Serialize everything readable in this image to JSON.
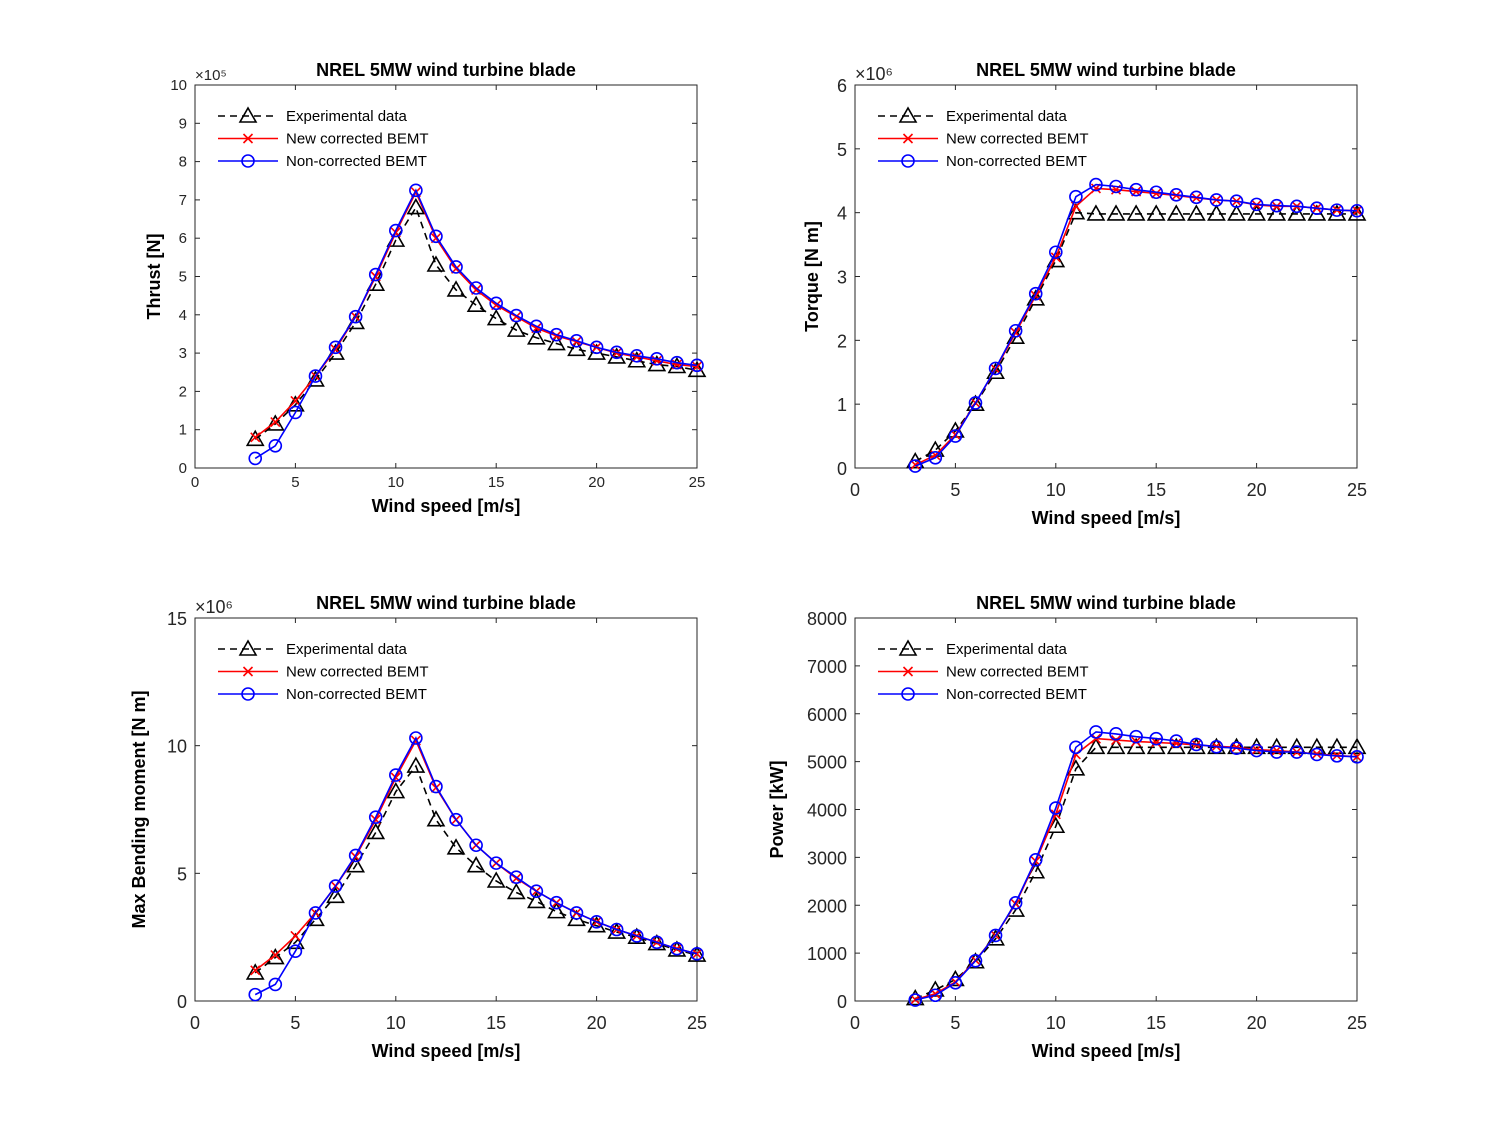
{
  "chart_data": [
    {
      "type": "line",
      "title": "NREL 5MW wind turbine blade",
      "xlabel": "Wind speed [m/s]",
      "ylabel": "Thrust [N]",
      "y_multiplier": "×10⁵",
      "xlim": [
        0,
        25
      ],
      "ylim": [
        0,
        10
      ],
      "xticks": [
        "0",
        "5",
        "10",
        "15",
        "20",
        "25"
      ],
      "yticks": [
        "0",
        "1",
        "2",
        "3",
        "4",
        "5",
        "6",
        "7",
        "8",
        "9",
        "10"
      ],
      "legend": "top-left",
      "x": [
        3,
        4,
        5,
        6,
        7,
        8,
        9,
        10,
        11,
        12,
        13,
        14,
        15,
        16,
        17,
        18,
        19,
        20,
        21,
        22,
        23,
        24,
        25
      ],
      "series": [
        {
          "name": "Experimental data",
          "color": "#000000",
          "marker": "triangle",
          "dash": "dashed",
          "values": [
            0.75,
            1.15,
            1.65,
            2.3,
            3.0,
            3.8,
            4.8,
            5.95,
            6.8,
            5.3,
            4.65,
            4.25,
            3.9,
            3.6,
            3.4,
            3.25,
            3.1,
            3.0,
            2.9,
            2.8,
            2.7,
            2.65,
            2.55
          ]
        },
        {
          "name": "New corrected BEMT",
          "color": "#ff0000",
          "marker": "x",
          "dash": "solid",
          "values": [
            0.8,
            1.2,
            1.75,
            2.4,
            3.1,
            3.95,
            5.0,
            6.15,
            7.2,
            6.0,
            5.2,
            4.65,
            4.25,
            3.95,
            3.65,
            3.45,
            3.3,
            3.15,
            3.0,
            2.9,
            2.8,
            2.7,
            2.65
          ]
        },
        {
          "name": "Non-corrected BEMT",
          "color": "#0000ff",
          "marker": "circle",
          "dash": "solid",
          "values": [
            0.25,
            0.58,
            1.45,
            2.4,
            3.15,
            3.95,
            5.05,
            6.2,
            7.25,
            6.05,
            5.25,
            4.7,
            4.3,
            3.98,
            3.7,
            3.48,
            3.32,
            3.15,
            3.02,
            2.93,
            2.85,
            2.75,
            2.68
          ]
        }
      ]
    },
    {
      "type": "line",
      "title": "NREL 5MW wind turbine blade",
      "xlabel": "Wind speed [m/s]",
      "ylabel": "Torque [N m]",
      "y_multiplier": "×10⁶",
      "xlim": [
        0,
        25
      ],
      "ylim": [
        0,
        6
      ],
      "xticks": [
        "0",
        "5",
        "10",
        "15",
        "20",
        "25"
      ],
      "yticks": [
        "0",
        "1",
        "2",
        "3",
        "4",
        "5",
        "6"
      ],
      "legend": "top-left",
      "x": [
        3,
        4,
        5,
        6,
        7,
        8,
        9,
        10,
        11,
        12,
        13,
        14,
        15,
        16,
        17,
        18,
        19,
        20,
        21,
        22,
        23,
        24,
        25
      ],
      "series": [
        {
          "name": "Experimental data",
          "color": "#000000",
          "marker": "triangle",
          "dash": "dashed",
          "values": [
            0.1,
            0.28,
            0.58,
            1.0,
            1.5,
            2.05,
            2.65,
            3.25,
            4.0,
            3.98,
            3.98,
            3.98,
            3.98,
            3.98,
            3.98,
            3.98,
            3.98,
            3.98,
            3.98,
            3.98,
            3.98,
            3.98,
            3.98
          ]
        },
        {
          "name": "New corrected BEMT",
          "color": "#ff0000",
          "marker": "x",
          "dash": "solid",
          "values": [
            0.05,
            0.2,
            0.52,
            1.02,
            1.55,
            2.12,
            2.7,
            3.3,
            4.1,
            4.38,
            4.36,
            4.33,
            4.3,
            4.27,
            4.23,
            4.2,
            4.18,
            4.12,
            4.1,
            4.1,
            4.07,
            4.04,
            4.03
          ]
        },
        {
          "name": "Non-corrected BEMT",
          "color": "#0000ff",
          "marker": "circle",
          "dash": "solid",
          "values": [
            0.03,
            0.16,
            0.5,
            1.02,
            1.56,
            2.15,
            2.73,
            3.38,
            4.25,
            4.44,
            4.41,
            4.36,
            4.32,
            4.28,
            4.24,
            4.2,
            4.18,
            4.13,
            4.11,
            4.1,
            4.07,
            4.04,
            4.03
          ]
        }
      ]
    },
    {
      "type": "line",
      "title": "NREL 5MW wind turbine blade",
      "xlabel": "Wind speed [m/s]",
      "ylabel": "Max Bending moment [N m]",
      "y_multiplier": "×10⁶",
      "xlim": [
        0,
        25
      ],
      "ylim": [
        0,
        15
      ],
      "xticks": [
        "0",
        "5",
        "10",
        "15",
        "20",
        "25"
      ],
      "yticks": [
        "0",
        "5",
        "10",
        "15"
      ],
      "legend": "top-left",
      "x": [
        3,
        4,
        5,
        6,
        7,
        8,
        9,
        10,
        11,
        12,
        13,
        14,
        15,
        16,
        17,
        18,
        19,
        20,
        21,
        22,
        23,
        24,
        25
      ],
      "series": [
        {
          "name": "Experimental data",
          "color": "#000000",
          "marker": "triangle",
          "dash": "dashed",
          "values": [
            1.1,
            1.7,
            2.3,
            3.2,
            4.1,
            5.3,
            6.6,
            8.2,
            9.2,
            7.1,
            6.0,
            5.3,
            4.7,
            4.25,
            3.9,
            3.5,
            3.2,
            2.95,
            2.7,
            2.5,
            2.25,
            2.0,
            1.8
          ]
        },
        {
          "name": "New corrected BEMT",
          "color": "#ff0000",
          "marker": "x",
          "dash": "solid",
          "values": [
            1.2,
            1.8,
            2.55,
            3.45,
            4.5,
            5.65,
            7.1,
            8.75,
            10.2,
            8.35,
            7.1,
            6.1,
            5.4,
            4.8,
            4.3,
            3.85,
            3.45,
            3.1,
            2.8,
            2.55,
            2.3,
            2.05,
            1.85
          ]
        },
        {
          "name": "Non-corrected BEMT",
          "color": "#0000ff",
          "marker": "circle",
          "dash": "solid",
          "values": [
            0.25,
            0.65,
            1.95,
            3.45,
            4.5,
            5.7,
            7.2,
            8.85,
            10.3,
            8.4,
            7.1,
            6.1,
            5.4,
            4.85,
            4.3,
            3.85,
            3.45,
            3.1,
            2.8,
            2.55,
            2.3,
            2.05,
            1.85
          ]
        }
      ]
    },
    {
      "type": "line",
      "title": "NREL 5MW wind turbine blade",
      "xlabel": "Wind speed [m/s]",
      "ylabel": "Power [kW]",
      "y_multiplier": "",
      "xlim": [
        0,
        25
      ],
      "ylim": [
        0,
        8000
      ],
      "xticks": [
        "0",
        "5",
        "10",
        "15",
        "20",
        "25"
      ],
      "yticks": [
        "0",
        "1000",
        "2000",
        "3000",
        "4000",
        "5000",
        "6000",
        "7000",
        "8000"
      ],
      "legend": "top-left",
      "x": [
        3,
        4,
        5,
        6,
        7,
        8,
        9,
        10,
        11,
        12,
        13,
        14,
        15,
        16,
        17,
        18,
        19,
        20,
        21,
        22,
        23,
        24,
        25
      ],
      "series": [
        {
          "name": "Experimental data",
          "color": "#000000",
          "marker": "triangle",
          "dash": "dashed",
          "values": [
            50,
            230,
            450,
            820,
            1300,
            1900,
            2700,
            3650,
            4850,
            5300,
            5300,
            5300,
            5300,
            5300,
            5300,
            5300,
            5300,
            5300,
            5300,
            5300,
            5300,
            5300,
            5300
          ]
        },
        {
          "name": "New corrected BEMT",
          "color": "#ff0000",
          "marker": "x",
          "dash": "solid",
          "values": [
            30,
            150,
            400,
            850,
            1370,
            2030,
            2920,
            3900,
            5150,
            5480,
            5450,
            5420,
            5400,
            5380,
            5350,
            5320,
            5300,
            5250,
            5230,
            5200,
            5160,
            5130,
            5100
          ]
        },
        {
          "name": "Non-corrected BEMT",
          "color": "#0000ff",
          "marker": "circle",
          "dash": "solid",
          "values": [
            20,
            120,
            380,
            840,
            1370,
            2050,
            2950,
            4030,
            5300,
            5620,
            5580,
            5520,
            5480,
            5430,
            5360,
            5310,
            5280,
            5230,
            5200,
            5200,
            5150,
            5120,
            5100
          ]
        }
      ]
    }
  ]
}
